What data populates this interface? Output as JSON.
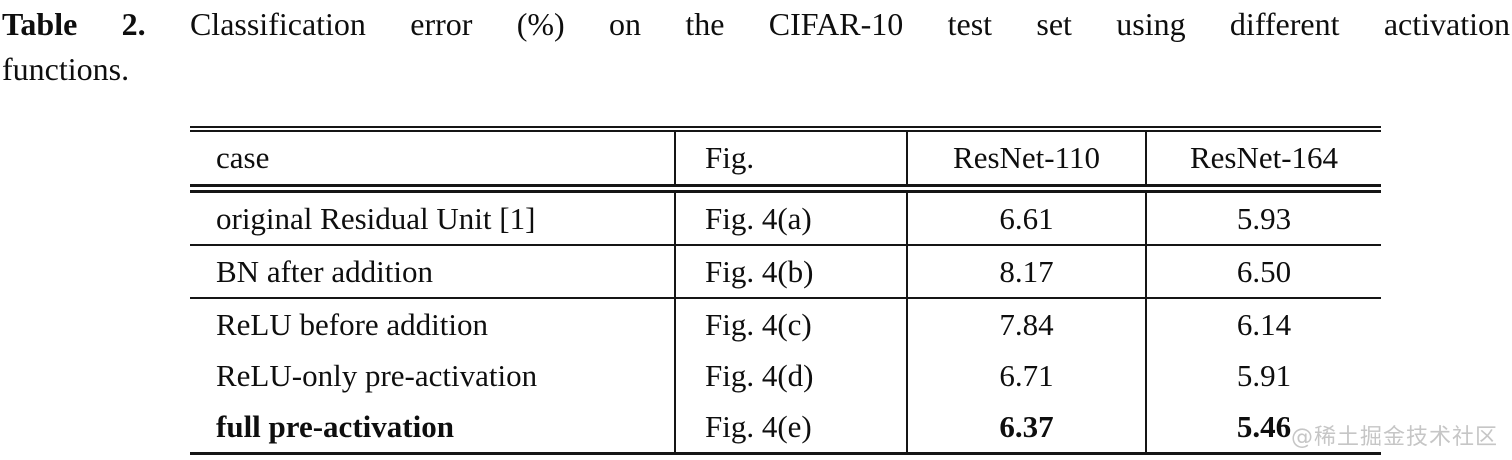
{
  "caption": {
    "label": "Table 2.",
    "line1": "Classification error (%) on the CIFAR-10 test set using different activation",
    "line2": "functions."
  },
  "table": {
    "columns": [
      "case",
      "Fig.",
      "ResNet-110",
      "ResNet-164"
    ],
    "rows": [
      {
        "case": "original Residual Unit [1]",
        "fig": "Fig. 4(a)",
        "resnet110": "6.61",
        "resnet164": "5.93",
        "bold": false,
        "rule_below": true
      },
      {
        "case": "BN after addition",
        "fig": "Fig. 4(b)",
        "resnet110": "8.17",
        "resnet164": "6.50",
        "bold": false,
        "rule_below": true
      },
      {
        "case": "ReLU before addition",
        "fig": "Fig. 4(c)",
        "resnet110": "7.84",
        "resnet164": "6.14",
        "bold": false,
        "rule_below": false
      },
      {
        "case": "ReLU-only pre-activation",
        "fig": "Fig. 4(d)",
        "resnet110": "6.71",
        "resnet164": "5.91",
        "bold": false,
        "rule_below": false
      },
      {
        "case": "full pre-activation",
        "fig": "Fig. 4(e)",
        "resnet110": "6.37",
        "resnet164": "5.46",
        "bold": true,
        "rule_below": false
      }
    ]
  },
  "watermark": {
    "text": "@稀土掘金技术社区",
    "color": "#c6c6c6"
  },
  "colors": {
    "ink": "#0e0e0e",
    "rule": "#151515",
    "background": "#ffffff"
  }
}
